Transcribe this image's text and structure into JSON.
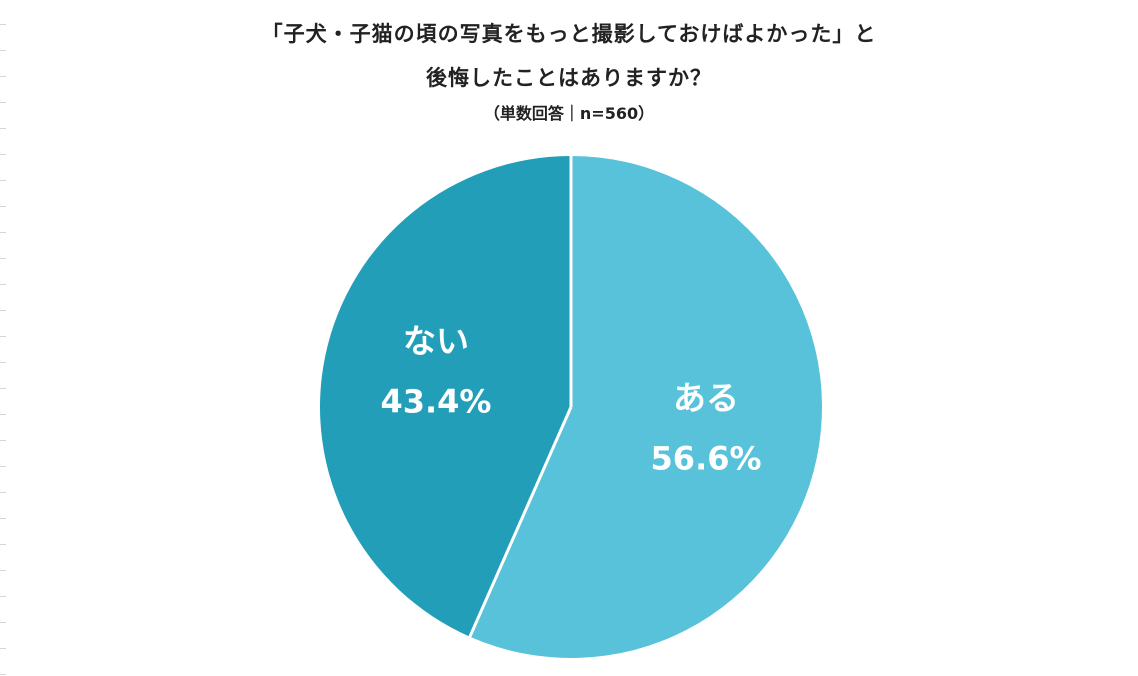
{
  "title_line1": "「子犬・子猫の頃の写真をもっと撮影しておけばよかった」と",
  "title_line2": "後悔したことはありますか？",
  "subtitle": "（単数回答｜n=560）",
  "colors": {
    "aru": "#58C2DA",
    "nai": "#229EB9",
    "separator": "#ffffff"
  },
  "chart_data": {
    "type": "pie",
    "title": "「子犬・子猫の頃の写真をもっと撮影しておけばよかった」と後悔したことはありますか？",
    "subtitle": "（単数回答｜n=560）",
    "slices": [
      {
        "label": "ある",
        "value": 56.6,
        "value_text": "56.6%"
      },
      {
        "label": "ない",
        "value": 43.4,
        "value_text": "43.4%"
      }
    ],
    "start_angle": "12 o'clock",
    "direction": "clockwise",
    "legend": "none"
  }
}
